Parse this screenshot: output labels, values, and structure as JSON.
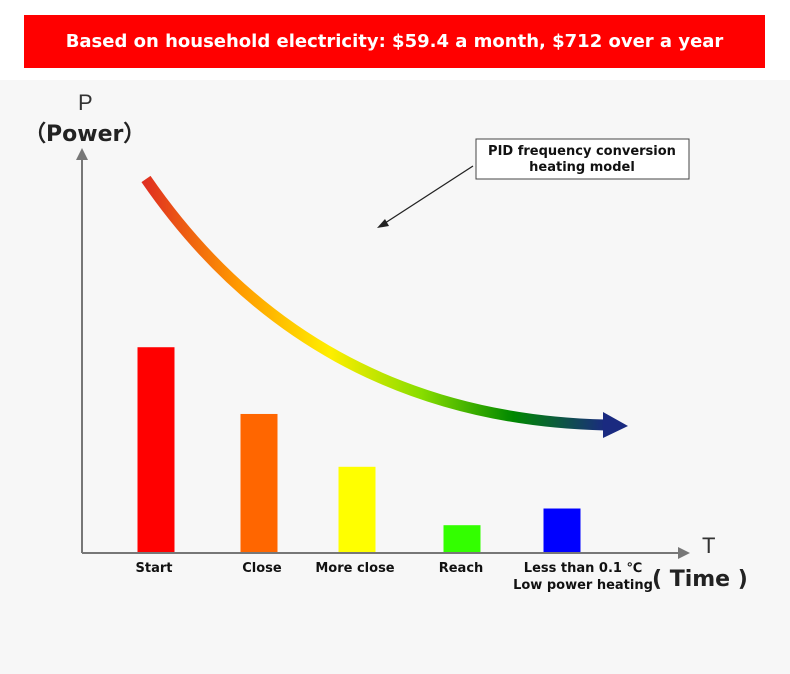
{
  "banner": {
    "text": "Based on household electricity: $59.4 a month, $712 over a year"
  },
  "chart_data": {
    "type": "bar",
    "y_axis": {
      "symbol": "P",
      "label": "（Power）",
      "ylim": [
        0,
        10
      ]
    },
    "x_axis": {
      "symbol": "T",
      "label": "( Time )"
    },
    "categories": [
      {
        "line1": "Start",
        "line2": ""
      },
      {
        "line1": "Close",
        "line2": ""
      },
      {
        "line1": "More close",
        "line2": ""
      },
      {
        "line1": "Reach",
        "line2": ""
      },
      {
        "line1": "Less than 0.1 ℃",
        "line2": "Low power heating"
      }
    ],
    "values": [
      7.4,
      5.0,
      3.1,
      1.0,
      1.6
    ],
    "bar_colors": [
      "#ff0000",
      "#ff6600",
      "#ffff00",
      "#33ff00",
      "#0000ff"
    ],
    "annotation": {
      "line1": "PID frequency conversion",
      "line2": "heating model"
    },
    "curve_colors": [
      "#e03020",
      "#ff9900",
      "#ffee00",
      "#88dd00",
      "#008800",
      "#1a2a80"
    ]
  }
}
